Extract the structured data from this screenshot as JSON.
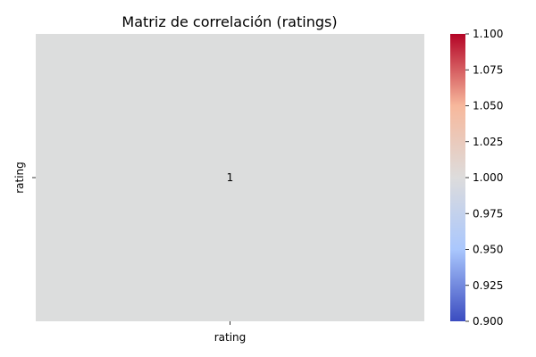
{
  "chart_data": {
    "type": "heatmap",
    "title": "Matriz de correlación (ratings)",
    "x_categories": [
      "rating"
    ],
    "y_categories": [
      "rating"
    ],
    "values": [
      [
        1
      ]
    ],
    "value_labels": [
      [
        "1"
      ]
    ],
    "colormap": "coolwarm",
    "colorbar": {
      "range": [
        0.9,
        1.1
      ],
      "ticks": [
        "0.900",
        "0.925",
        "0.950",
        "0.975",
        "1.000",
        "1.025",
        "1.050",
        "1.075",
        "1.100"
      ]
    },
    "colors": {
      "cell": "#dcdddd",
      "cmap_low": "#3b4cc0",
      "cmap_mid_low": "#aac7fd",
      "cmap_mid": "#dddcdc",
      "cmap_mid_high": "#f7b89c",
      "cmap_high": "#b40426"
    }
  }
}
